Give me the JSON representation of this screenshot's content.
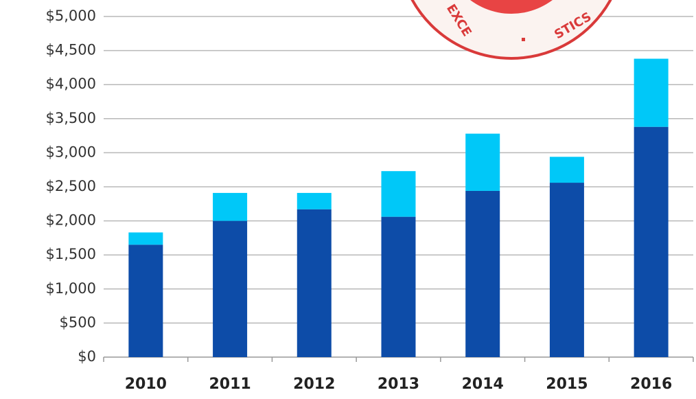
{
  "chart_data": {
    "type": "stacked_bar",
    "categories": [
      "2010",
      "2011",
      "2012",
      "2013",
      "2014",
      "2015",
      "2016"
    ],
    "series": [
      {
        "color": "#0d4ca8",
        "values": [
          1650,
          2000,
          2170,
          2060,
          2440,
          2560,
          3380
        ]
      },
      {
        "color": "#00c8f8",
        "values": [
          180,
          410,
          240,
          670,
          840,
          380,
          1000
        ]
      }
    ],
    "ylim": [
      0,
      5000
    ],
    "yticks": [
      {
        "value": 0,
        "label": "$0"
      },
      {
        "value": 500,
        "label": "$500"
      },
      {
        "value": 1000,
        "label": "$1,000"
      },
      {
        "value": 1500,
        "label": "$1,500"
      },
      {
        "value": 2000,
        "label": "$2,000"
      },
      {
        "value": 2500,
        "label": "$2,500"
      },
      {
        "value": 3000,
        "label": "$3,000"
      },
      {
        "value": 3500,
        "label": "$3,500"
      },
      {
        "value": 4000,
        "label": "$4,000"
      },
      {
        "value": 4500,
        "label": "$4,500"
      },
      {
        "value": 5000,
        "label": "$5,000"
      }
    ],
    "grid": true,
    "annotations": [
      "EXCE",
      "STICS"
    ]
  }
}
